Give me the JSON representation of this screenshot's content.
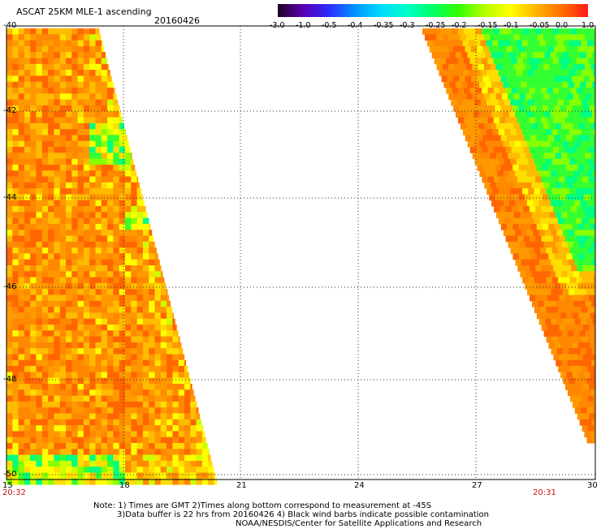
{
  "header": {
    "title": "ASCAT 25KM MLE-1 ascending",
    "date": "20160426"
  },
  "colorbar": {
    "labels": [
      "-3.0",
      "-1.0",
      "-0.5",
      "-0.4",
      "-0.35",
      "-0.3",
      "-0.25",
      "-0.2",
      "-0.15",
      "-0.1",
      "-0.05",
      "0.0",
      "1.0"
    ],
    "colors": [
      "#200020",
      "#5a00b4",
      "#2c2cff",
      "#0096ff",
      "#00dcff",
      "#00ffc8",
      "#00ff64",
      "#32ff00",
      "#b4ff00",
      "#ffff00",
      "#ffb400",
      "#ff6e00",
      "#ff1a1a"
    ]
  },
  "axes": {
    "lat_labels": [
      "-40",
      "-42",
      "-44",
      "-46",
      "-48",
      "-50"
    ],
    "lon_labels": [
      "15",
      "18",
      "21",
      "24",
      "27",
      "30"
    ],
    "left_time": "20:32",
    "right_time": "20:31"
  },
  "notes": {
    "line1": "Note: 1) Times are GMT 2)Times along bottom correspond to measurement at -45S",
    "line2": "3)Data buffer is 22 hrs from 20160426 4) Black wind barbs indicate possible contamination",
    "line3": "NOAA/NESDIS/Center for Satellite Applications and Research"
  }
}
